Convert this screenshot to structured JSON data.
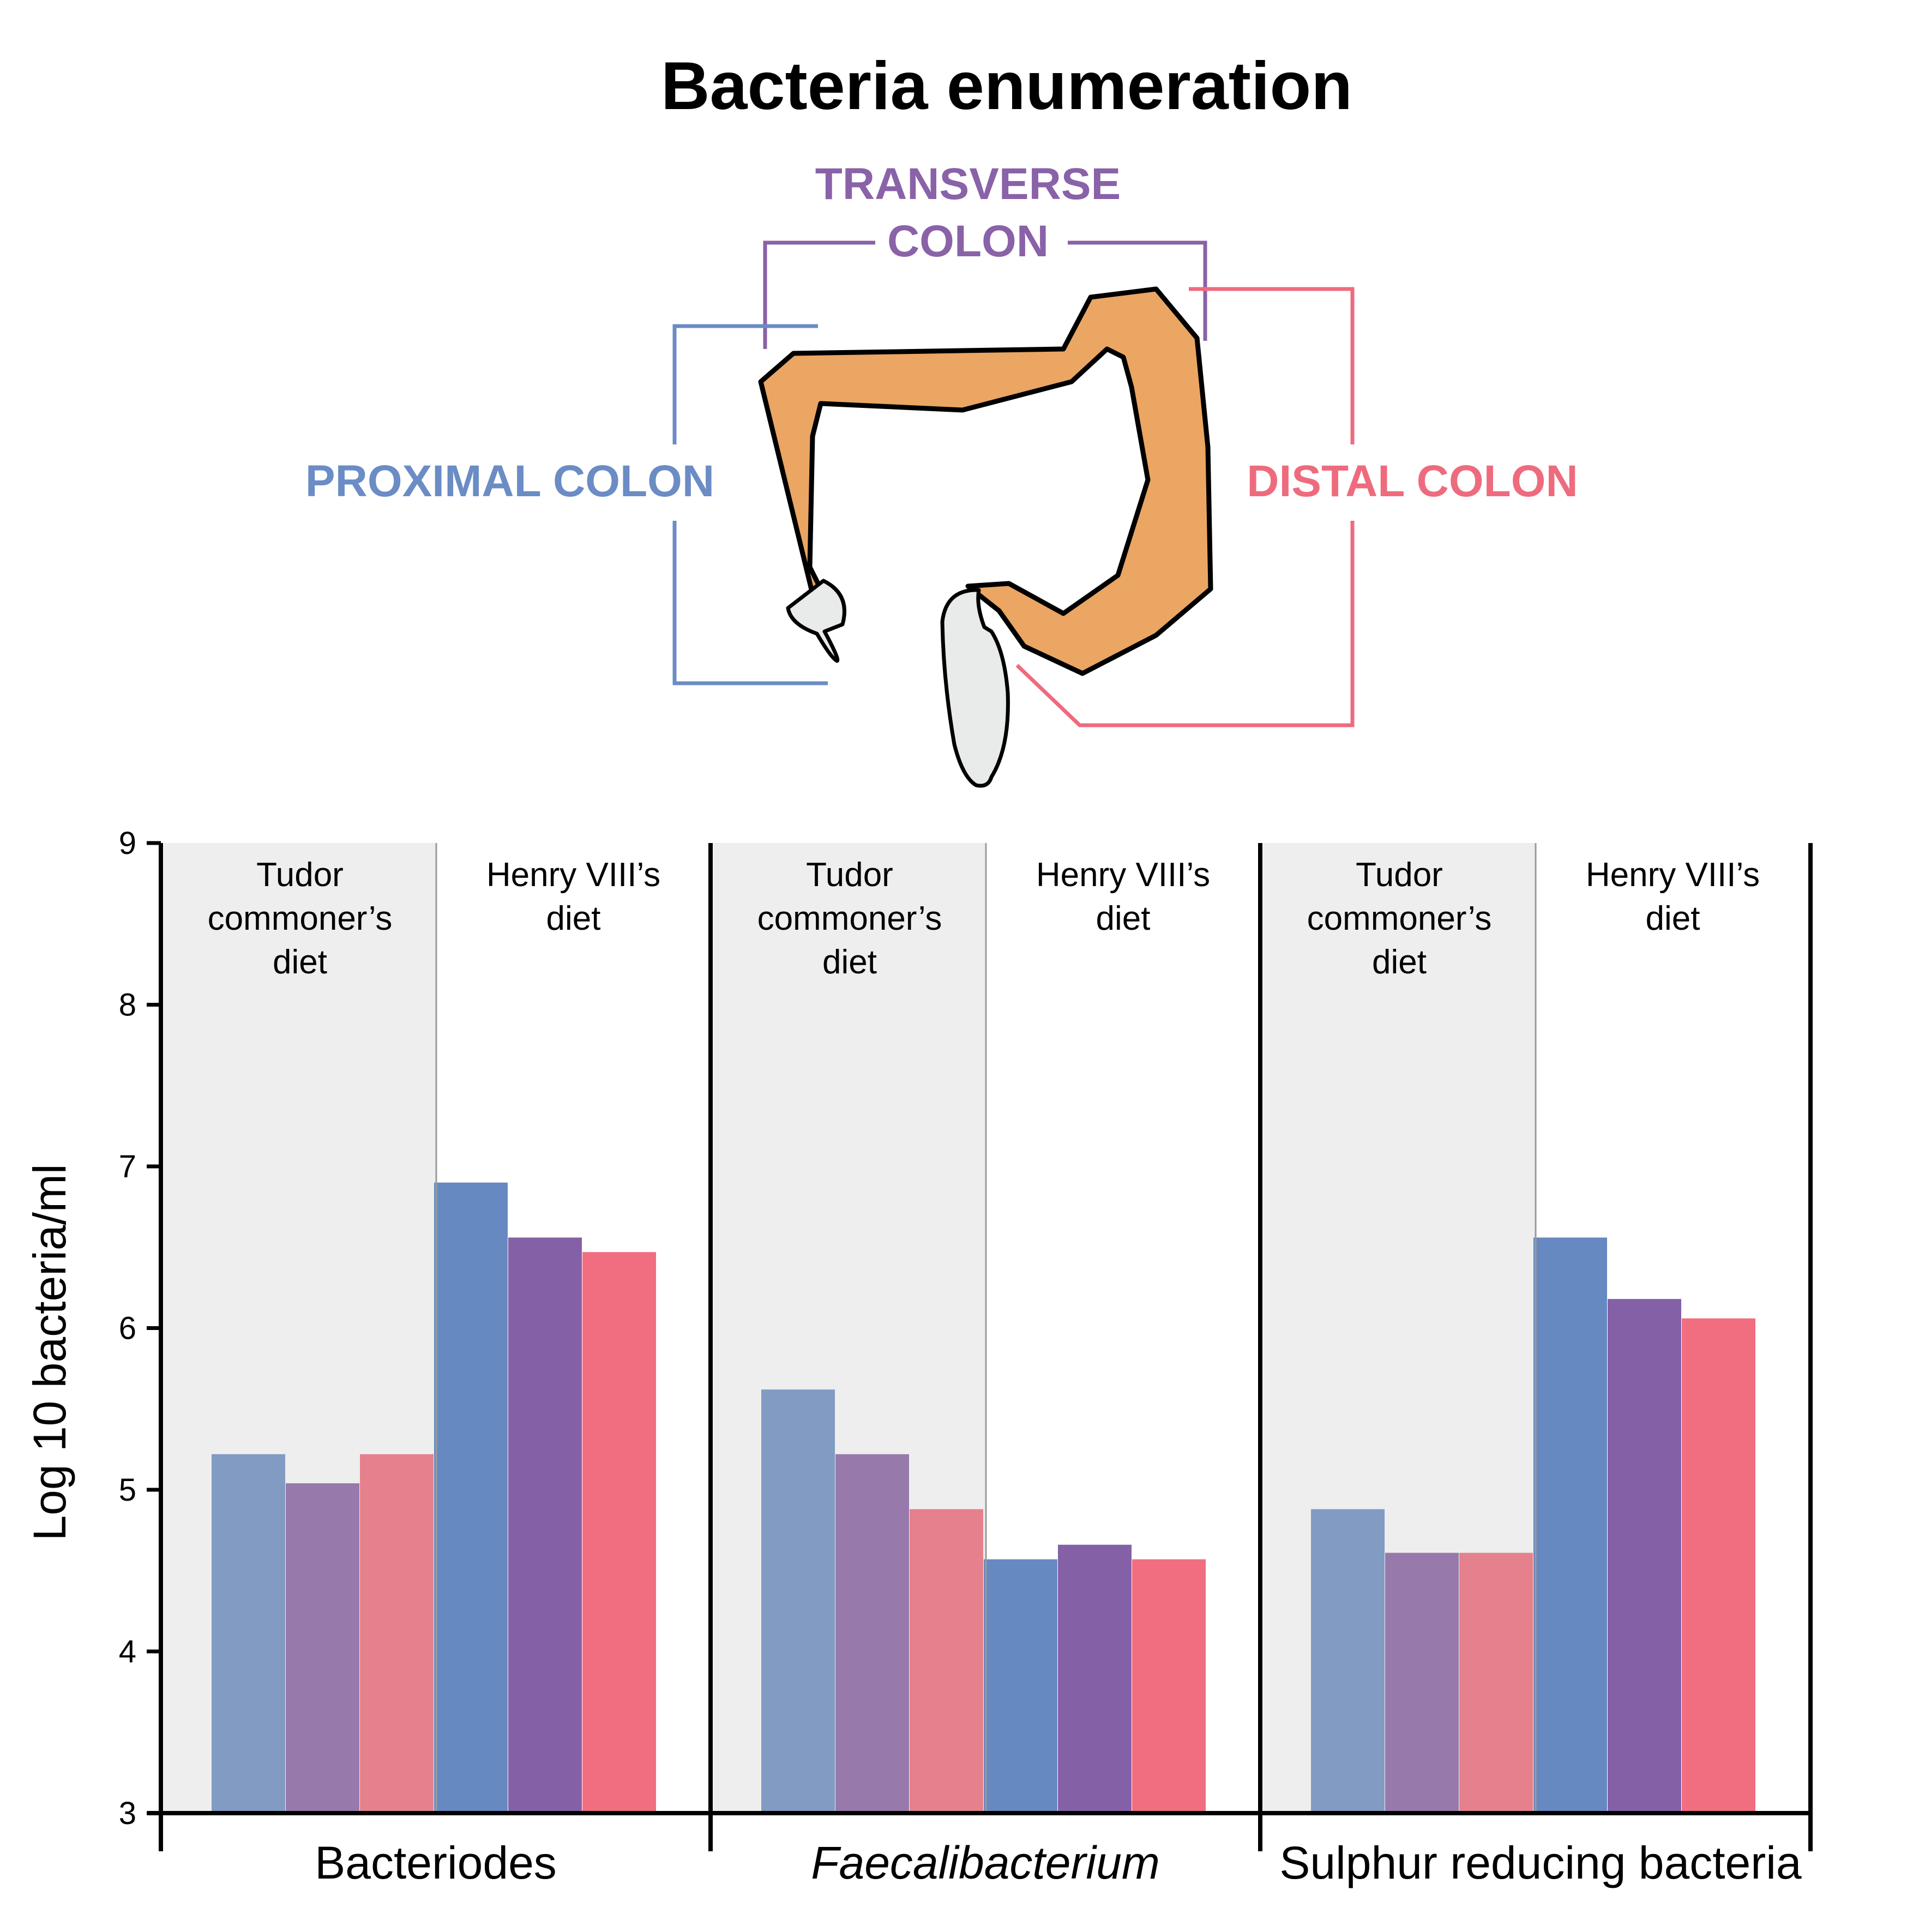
{
  "chart_data": {
    "type": "bar",
    "title": "Bacteria enumeration",
    "ylabel": "Log 10 bacteria/ml",
    "ylim": [
      3,
      9
    ],
    "yticks": [
      3,
      4,
      5,
      6,
      7,
      8,
      9
    ],
    "diagram": {
      "regions": [
        {
          "key": "proximal",
          "lines": [
            "PROXIMAL COLON"
          ],
          "color": "#6b8cc4"
        },
        {
          "key": "transverse",
          "lines": [
            "TRANSVERSE",
            "COLON"
          ],
          "color": "#8a62a8"
        },
        {
          "key": "distal",
          "lines": [
            "DISTAL COLON"
          ],
          "color": "#ee6b7e"
        }
      ]
    },
    "diets": [
      {
        "key": "tudor",
        "lines": [
          "Tudor",
          "commoner’s",
          "diet"
        ],
        "shaded": true,
        "colors": {
          "proximal": "#819bc3",
          "transverse": "#977aab",
          "distal": "#e5818d"
        }
      },
      {
        "key": "henry",
        "lines": [
          "Henry VIII’s",
          "diet"
        ],
        "shaded": false,
        "colors": {
          "proximal": "#6789c1",
          "transverse": "#8461a7",
          "distal": "#f06e80"
        }
      }
    ],
    "groups": [
      {
        "name": "Bacteriodes",
        "italic": false,
        "values": {
          "tudor": [
            5.22,
            5.04,
            5.22
          ],
          "henry": [
            6.9,
            6.56,
            6.47
          ]
        }
      },
      {
        "name": "Faecalibacterium",
        "italic": true,
        "values": {
          "tudor": [
            5.62,
            5.22,
            4.88
          ],
          "henry": [
            4.57,
            4.66,
            4.57
          ]
        }
      },
      {
        "name": "Sulphur reducing bacteria",
        "italic": false,
        "values": {
          "tudor": [
            4.88,
            4.61,
            4.61
          ],
          "henry": [
            6.56,
            6.18,
            6.06
          ]
        }
      }
    ]
  }
}
